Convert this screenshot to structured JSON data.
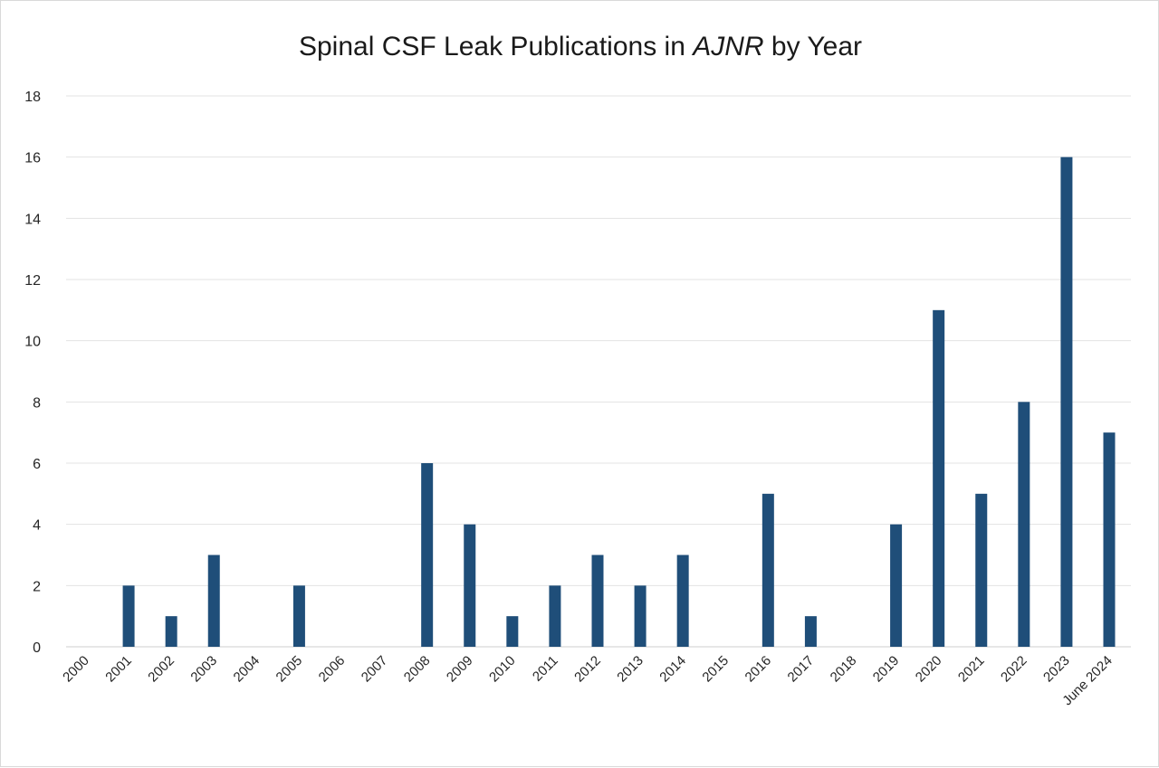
{
  "chart_data": {
    "type": "bar",
    "title_parts": {
      "pre": "Spinal CSF Leak Publications in ",
      "emph": "AJNR",
      "post": " by Year"
    },
    "xlabel": "",
    "ylabel": "",
    "ylim": [
      0,
      18
    ],
    "yticks": [
      "0",
      "2",
      "4",
      "6",
      "8",
      "10",
      "12",
      "14",
      "16",
      "18"
    ],
    "grid": true,
    "legend": "none",
    "bar_color": "#1f4e79",
    "categories": [
      "2000",
      "2001",
      "2002",
      "2003",
      "2004",
      "2005",
      "2006",
      "2007",
      "2008",
      "2009",
      "2010",
      "2011",
      "2012",
      "2013",
      "2014",
      "2015",
      "2016",
      "2017",
      "2018",
      "2019",
      "2020",
      "2021",
      "2022",
      "2023",
      "June 2024"
    ],
    "values": [
      0,
      2,
      1,
      3,
      0,
      2,
      0,
      0,
      6,
      4,
      1,
      2,
      3,
      2,
      3,
      0,
      5,
      1,
      0,
      4,
      11,
      5,
      8,
      16,
      7
    ]
  }
}
